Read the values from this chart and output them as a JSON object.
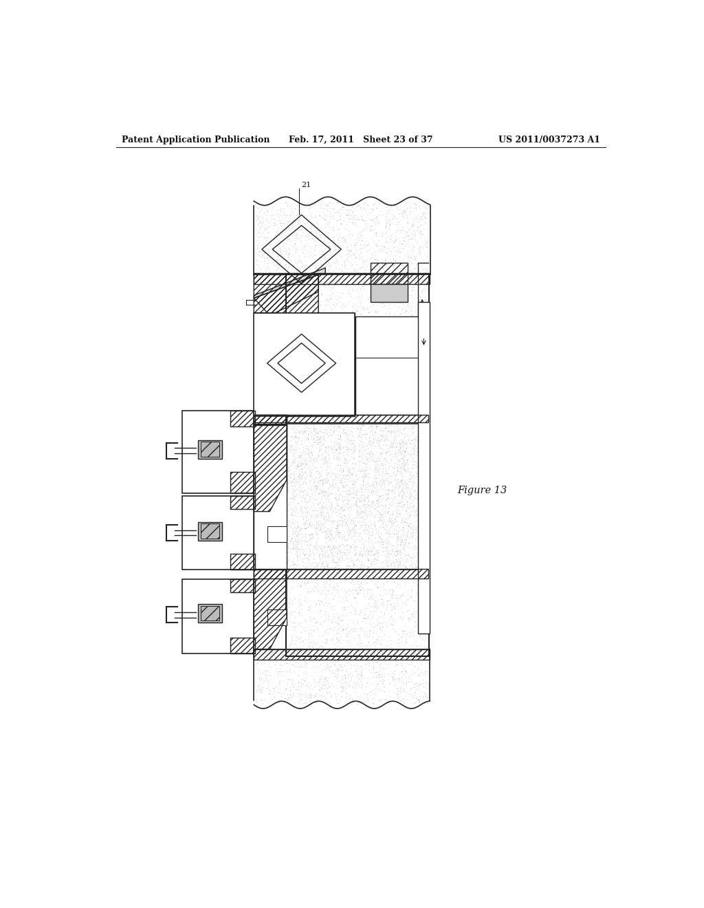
{
  "background_color": "#ffffff",
  "header_left": "Patent Application Publication",
  "header_mid": "Feb. 17, 2011   Sheet 23 of 37",
  "header_right": "US 2011/0037273 A1",
  "figure_label": "Figure 13",
  "ref_num": "21",
  "stipple_color": "#888888",
  "line_color": "#222222",
  "hatch_color": "#333333"
}
